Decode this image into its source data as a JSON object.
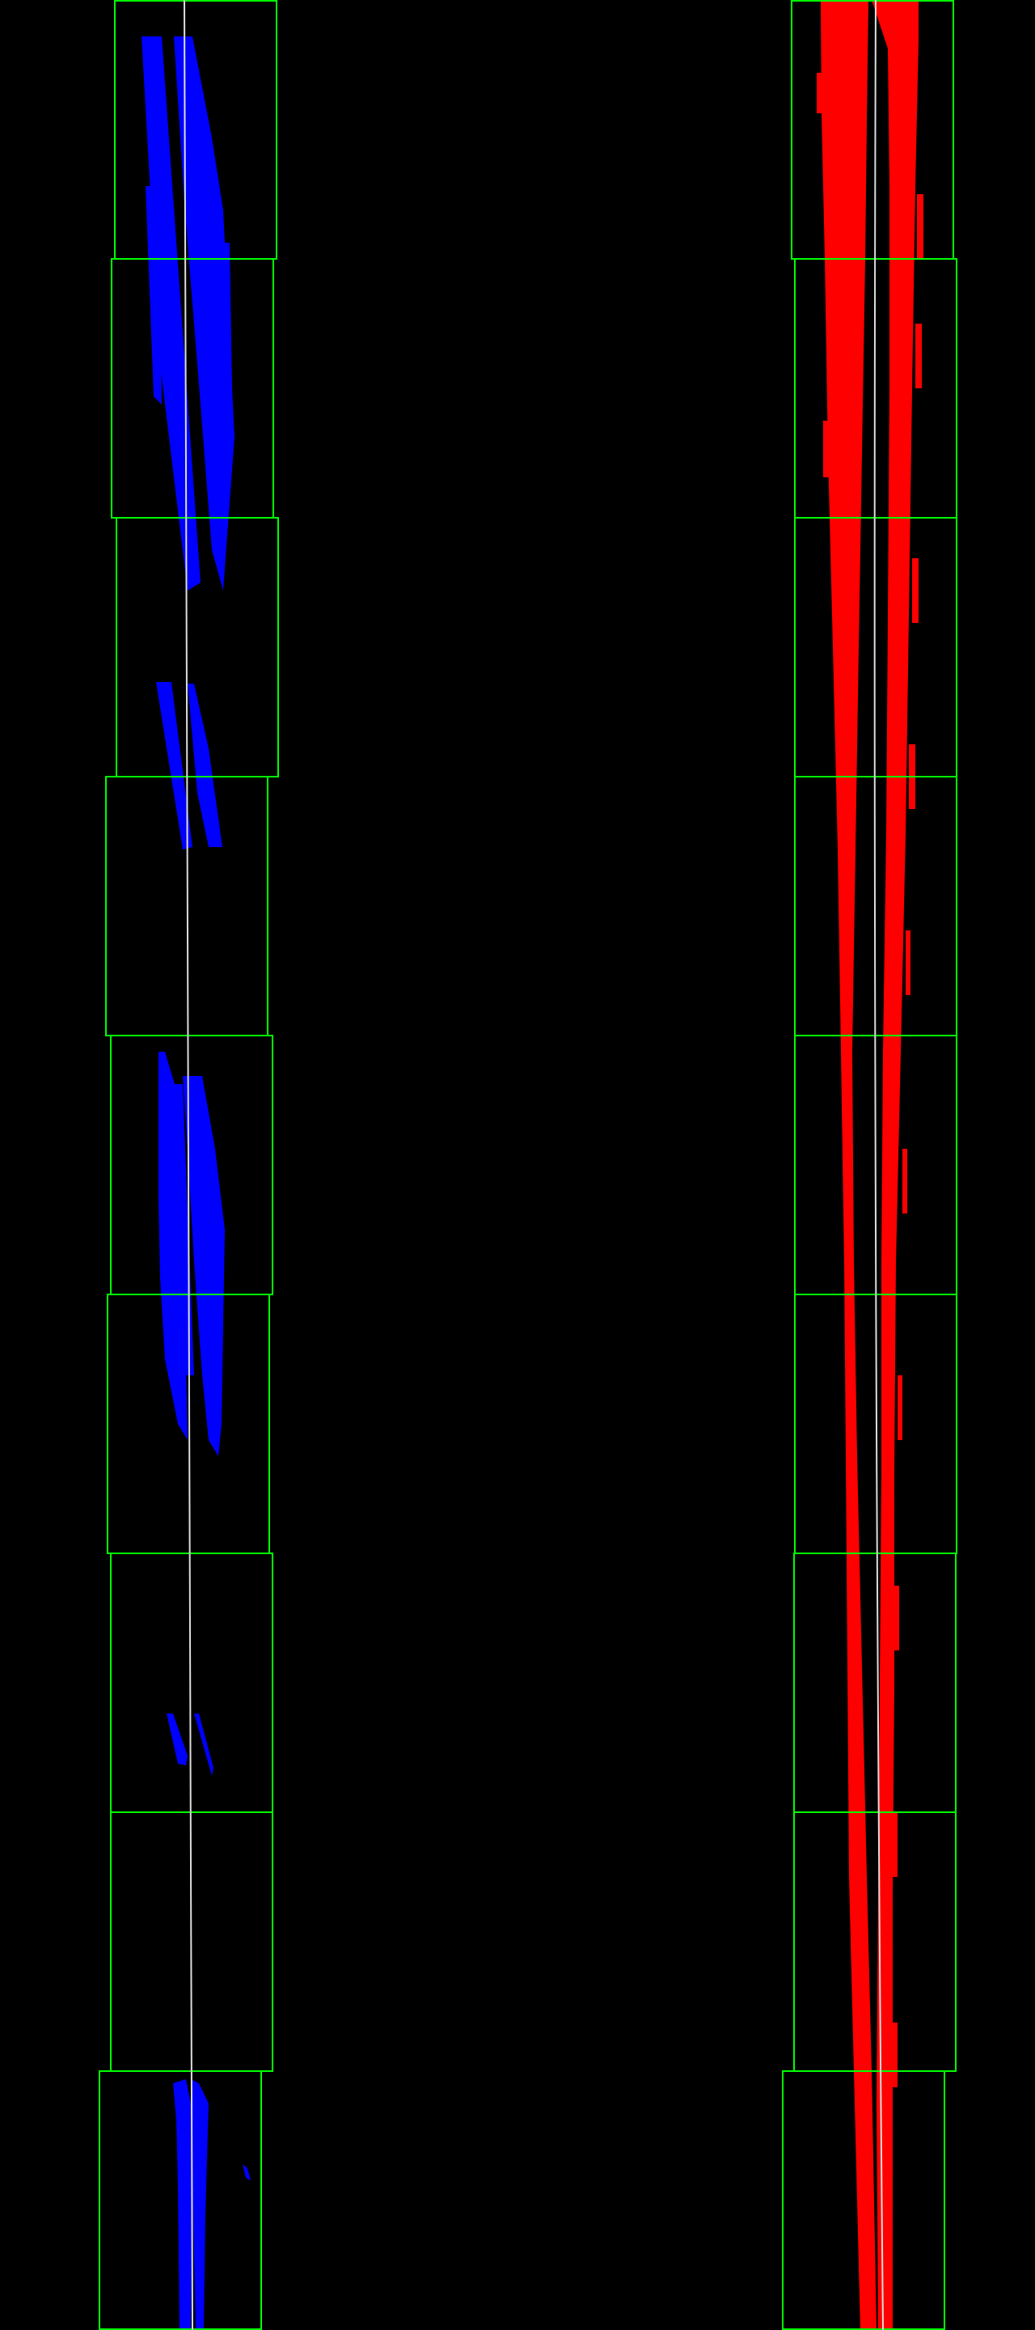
{
  "view": {
    "background": "#000000",
    "colors": {
      "left_lane_pixels": "#0000ff",
      "right_lane_pixels": "#ff0000",
      "search_window": "#00ff00",
      "fit_line": "#ffffff"
    },
    "window_count_per_lane": 9,
    "lanes": [
      {
        "name": "left",
        "color": "#0000ff"
      },
      {
        "name": "right",
        "color": "#ff0000"
      }
    ]
  }
}
